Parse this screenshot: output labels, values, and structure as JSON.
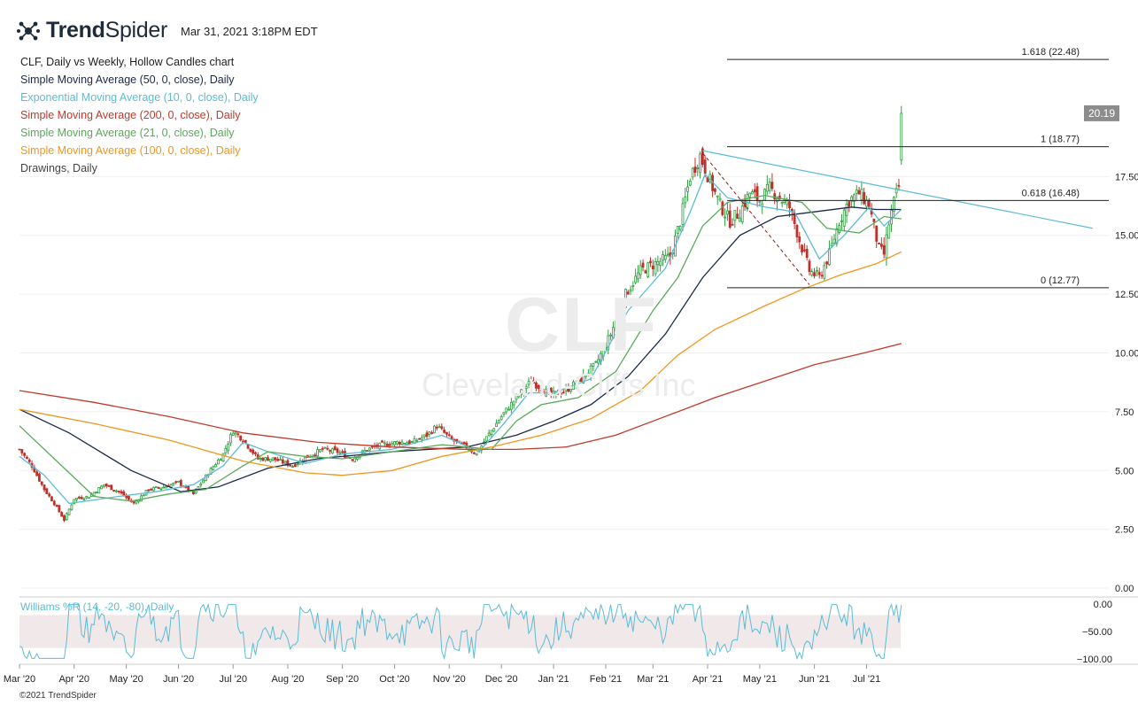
{
  "header": {
    "logo_bold": "Trend",
    "logo_light": "Spider",
    "timestamp": "Mar 31, 2021 3:18PM EDT"
  },
  "legend": {
    "title": "CLF, Daily vs Weekly, Hollow Candles chart",
    "items": [
      {
        "label": "Simple Moving Average (50, 0, close), Daily",
        "color": "#1b2a4a"
      },
      {
        "label": "Exponential Moving Average (10, 0, close), Daily",
        "color": "#5bbcd6"
      },
      {
        "label": "Simple Moving Average (200, 0, close), Daily",
        "color": "#c0392b"
      },
      {
        "label": "Simple Moving Average (21, 0, close), Daily",
        "color": "#5aa95a"
      },
      {
        "label": "Simple Moving Average (100, 0, close), Daily",
        "color": "#f0961e"
      },
      {
        "label": "Drawings, Daily",
        "color": "#444444"
      }
    ]
  },
  "watermark": {
    "ticker": "CLF",
    "name": "Cleveland-Cliffs Inc"
  },
  "copyright": "©2021 TrendSpider",
  "chart_data": {
    "type": "candlestick",
    "ticker": "CLF",
    "price_axis": {
      "ticks": [
        0,
        2.5,
        5,
        7.5,
        10,
        12.5,
        15,
        17.5
      ],
      "tick_labels": [
        "0.00",
        "2.50",
        "5.00",
        "7.50",
        "10.00",
        "12.50",
        "15.00",
        "17.50"
      ],
      "range": [
        -0.3,
        23.5
      ]
    },
    "time_axis": {
      "labels": [
        "Mar '20",
        "Apr '20",
        "May '20",
        "Jun '20",
        "Jul '20",
        "Aug '20",
        "Sep '20",
        "Oct '20",
        "Nov '20",
        "Dec '20",
        "Jan '21",
        "Feb '21",
        "Mar '21",
        "Apr '21",
        "May '21",
        "Jun '21",
        "Jul '21"
      ]
    },
    "last_price": {
      "value": 20.19,
      "label": "20.19"
    },
    "fibonacci": [
      {
        "label": "1.618 (22.48)",
        "value": 22.48
      },
      {
        "label": "1 (18.77)",
        "value": 18.77
      },
      {
        "label": "0.618 (16.48)",
        "value": 16.48
      },
      {
        "label": "0 (12.77)",
        "value": 12.77
      }
    ],
    "close_anchors": [
      [
        0,
        5.9
      ],
      [
        5,
        5.2
      ],
      [
        10,
        4.2
      ],
      [
        14,
        3.6
      ],
      [
        18,
        2.9
      ],
      [
        22,
        3.8
      ],
      [
        28,
        3.9
      ],
      [
        34,
        4.4
      ],
      [
        40,
        4.1
      ],
      [
        46,
        3.6
      ],
      [
        52,
        4.2
      ],
      [
        58,
        4.3
      ],
      [
        64,
        4.5
      ],
      [
        70,
        4.0
      ],
      [
        76,
        4.9
      ],
      [
        82,
        5.7
      ],
      [
        86,
        6.7
      ],
      [
        90,
        6.3
      ],
      [
        96,
        5.5
      ],
      [
        102,
        5.5
      ],
      [
        110,
        5.2
      ],
      [
        116,
        5.6
      ],
      [
        122,
        5.9
      ],
      [
        128,
        5.8
      ],
      [
        134,
        5.5
      ],
      [
        140,
        5.9
      ],
      [
        146,
        6.1
      ],
      [
        152,
        6.2
      ],
      [
        158,
        6.2
      ],
      [
        164,
        6.5
      ],
      [
        168,
        6.9
      ],
      [
        174,
        6.3
      ],
      [
        180,
        6.0
      ],
      [
        184,
        5.7
      ],
      [
        188,
        6.4
      ],
      [
        194,
        7.3
      ],
      [
        200,
        8.1
      ],
      [
        206,
        8.8
      ],
      [
        210,
        8.5
      ],
      [
        214,
        8.2
      ],
      [
        220,
        8.4
      ],
      [
        226,
        8.9
      ],
      [
        232,
        9.5
      ],
      [
        238,
        10.8
      ],
      [
        244,
        12.5
      ],
      [
        250,
        13.5
      ],
      [
        256,
        13.8
      ],
      [
        262,
        14.1
      ],
      [
        266,
        15.6
      ],
      [
        270,
        17.5
      ],
      [
        274,
        18.4
      ],
      [
        278,
        17.3
      ],
      [
        282,
        16.3
      ],
      [
        286,
        15.6
      ],
      [
        290,
        16.0
      ],
      [
        294,
        16.8
      ],
      [
        298,
        16.5
      ],
      [
        302,
        17.0
      ],
      [
        306,
        16.6
      ],
      [
        310,
        16.2
      ],
      [
        314,
        14.8
      ],
      [
        318,
        13.5
      ],
      [
        322,
        13.2
      ],
      [
        326,
        14.2
      ],
      [
        330,
        15.6
      ],
      [
        334,
        16.5
      ],
      [
        338,
        16.8
      ],
      [
        342,
        16.3
      ],
      [
        346,
        14.4
      ],
      [
        348,
        14.2
      ],
      [
        350,
        15.5
      ],
      [
        352,
        16.4
      ],
      [
        354,
        17.1
      ],
      [
        355,
        20.19
      ]
    ],
    "series": [
      {
        "name": "Simple Moving Average (50, 0, close), Daily",
        "color": "#1b2a4a",
        "points": [
          [
            0,
            7.6
          ],
          [
            20,
            6.6
          ],
          [
            45,
            5.0
          ],
          [
            65,
            4.1
          ],
          [
            80,
            4.3
          ],
          [
            100,
            5.1
          ],
          [
            120,
            5.5
          ],
          [
            150,
            5.8
          ],
          [
            180,
            6.0
          ],
          [
            200,
            6.5
          ],
          [
            215,
            7.1
          ],
          [
            230,
            7.8
          ],
          [
            245,
            9.0
          ],
          [
            260,
            10.8
          ],
          [
            275,
            13.2
          ],
          [
            290,
            15.0
          ],
          [
            305,
            15.8
          ],
          [
            320,
            16.0
          ],
          [
            335,
            16.2
          ],
          [
            345,
            16.1
          ],
          [
            355,
            16.1
          ]
        ]
      },
      {
        "name": "Exponential Moving Average (10, 0, close), Daily",
        "color": "#5bbcd6",
        "points": [
          [
            0,
            5.6
          ],
          [
            10,
            4.8
          ],
          [
            20,
            3.6
          ],
          [
            40,
            3.9
          ],
          [
            55,
            4.1
          ],
          [
            70,
            4.4
          ],
          [
            82,
            5.2
          ],
          [
            90,
            6.2
          ],
          [
            100,
            5.8
          ],
          [
            115,
            5.3
          ],
          [
            130,
            5.7
          ],
          [
            150,
            5.9
          ],
          [
            170,
            6.5
          ],
          [
            185,
            5.8
          ],
          [
            195,
            7.0
          ],
          [
            205,
            8.3
          ],
          [
            215,
            8.3
          ],
          [
            230,
            8.9
          ],
          [
            245,
            11.8
          ],
          [
            260,
            13.6
          ],
          [
            270,
            16.0
          ],
          [
            276,
            17.6
          ],
          [
            285,
            16.6
          ],
          [
            300,
            16.2
          ],
          [
            312,
            16.0
          ],
          [
            322,
            14.0
          ],
          [
            332,
            15.0
          ],
          [
            342,
            16.2
          ],
          [
            348,
            15.4
          ],
          [
            355,
            16.1
          ]
        ]
      },
      {
        "name": "Simple Moving Average (200, 0, close), Daily",
        "color": "#c0392b",
        "points": [
          [
            0,
            8.4
          ],
          [
            30,
            7.9
          ],
          [
            60,
            7.3
          ],
          [
            90,
            6.6
          ],
          [
            120,
            6.2
          ],
          [
            150,
            6.0
          ],
          [
            180,
            5.9
          ],
          [
            200,
            5.9
          ],
          [
            220,
            6.0
          ],
          [
            240,
            6.5
          ],
          [
            260,
            7.3
          ],
          [
            280,
            8.1
          ],
          [
            300,
            8.8
          ],
          [
            320,
            9.5
          ],
          [
            340,
            10.0
          ],
          [
            355,
            10.4
          ]
        ]
      },
      {
        "name": "Simple Moving Average (21, 0, close), Daily",
        "color": "#5aa95a",
        "points": [
          [
            0,
            6.9
          ],
          [
            15,
            5.4
          ],
          [
            30,
            3.9
          ],
          [
            45,
            3.7
          ],
          [
            60,
            4.0
          ],
          [
            75,
            4.2
          ],
          [
            90,
            5.2
          ],
          [
            100,
            5.8
          ],
          [
            115,
            5.6
          ],
          [
            130,
            5.5
          ],
          [
            150,
            5.8
          ],
          [
            170,
            6.1
          ],
          [
            190,
            5.9
          ],
          [
            200,
            7.1
          ],
          [
            210,
            7.8
          ],
          [
            225,
            8.1
          ],
          [
            240,
            9.2
          ],
          [
            255,
            11.8
          ],
          [
            265,
            13.2
          ],
          [
            275,
            15.4
          ],
          [
            285,
            16.4
          ],
          [
            300,
            16.7
          ],
          [
            315,
            16.4
          ],
          [
            325,
            15.3
          ],
          [
            338,
            15.1
          ],
          [
            348,
            15.8
          ],
          [
            355,
            15.7
          ]
        ]
      },
      {
        "name": "Simple Moving Average (100, 0, close), Daily",
        "color": "#f0961e",
        "points": [
          [
            0,
            7.6
          ],
          [
            30,
            7.0
          ],
          [
            60,
            6.3
          ],
          [
            90,
            5.4
          ],
          [
            115,
            4.9
          ],
          [
            130,
            4.8
          ],
          [
            150,
            5.0
          ],
          [
            170,
            5.6
          ],
          [
            190,
            6.0
          ],
          [
            210,
            6.5
          ],
          [
            230,
            7.2
          ],
          [
            250,
            8.4
          ],
          [
            265,
            9.9
          ],
          [
            280,
            11.0
          ],
          [
            300,
            12.0
          ],
          [
            315,
            12.7
          ],
          [
            330,
            13.3
          ],
          [
            345,
            13.8
          ],
          [
            355,
            14.3
          ]
        ]
      }
    ],
    "drawings": {
      "trendline": {
        "from": [
          275,
          18.6
        ],
        "to": [
          432,
          15.3
        ],
        "color": "#5bbcd6"
      },
      "dashed": {
        "from": [
          275,
          18.5
        ],
        "to": [
          318,
          12.9
        ],
        "color": "#8b1a1a"
      }
    },
    "williams_r": {
      "label": "Williams %R (14, -20, -80), Daily",
      "ticks": [
        0,
        -50,
        -100
      ],
      "tick_labels": [
        "0.00",
        "−50.00",
        "−100.00"
      ],
      "band": [
        -20,
        -80
      ],
      "range": [
        -100,
        0
      ]
    }
  }
}
